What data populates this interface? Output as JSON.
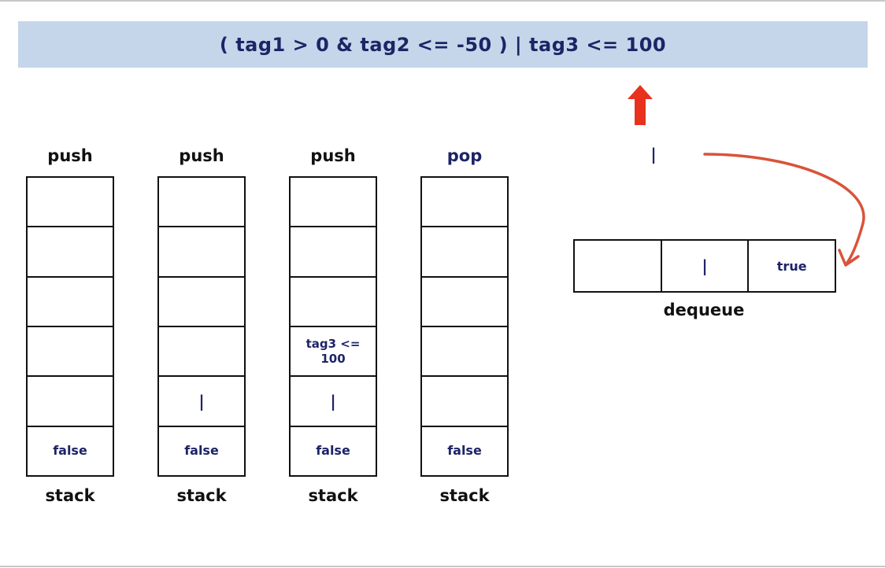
{
  "expression": "( tag1 > 0 & tag2 <= -50 ) | tag3 <= 100",
  "stacks": [
    {
      "op": "push",
      "name": "stack",
      "cells": [
        "",
        "",
        "",
        "",
        "",
        "false"
      ]
    },
    {
      "op": "push",
      "name": "stack",
      "cells": [
        "",
        "",
        "",
        "",
        "|",
        "false"
      ]
    },
    {
      "op": "push",
      "name": "stack",
      "cells": [
        "",
        "",
        "",
        "tag3 <= 100",
        "|",
        "false"
      ]
    },
    {
      "op": "pop",
      "name": "stack",
      "cells": [
        "",
        "",
        "",
        "",
        "",
        "false"
      ]
    }
  ],
  "popped_item": "|",
  "dequeue": {
    "name": "dequeue",
    "cells": [
      "",
      "|",
      "true"
    ]
  },
  "colors": {
    "banner": "#c5d6ea",
    "text_dark": "#1d2466",
    "arrow_red": "#e8321e",
    "curve": "#d9533a"
  },
  "icons": {
    "up_arrow": "up-arrow-icon",
    "curved_arrow": "curved-arrow-icon"
  }
}
